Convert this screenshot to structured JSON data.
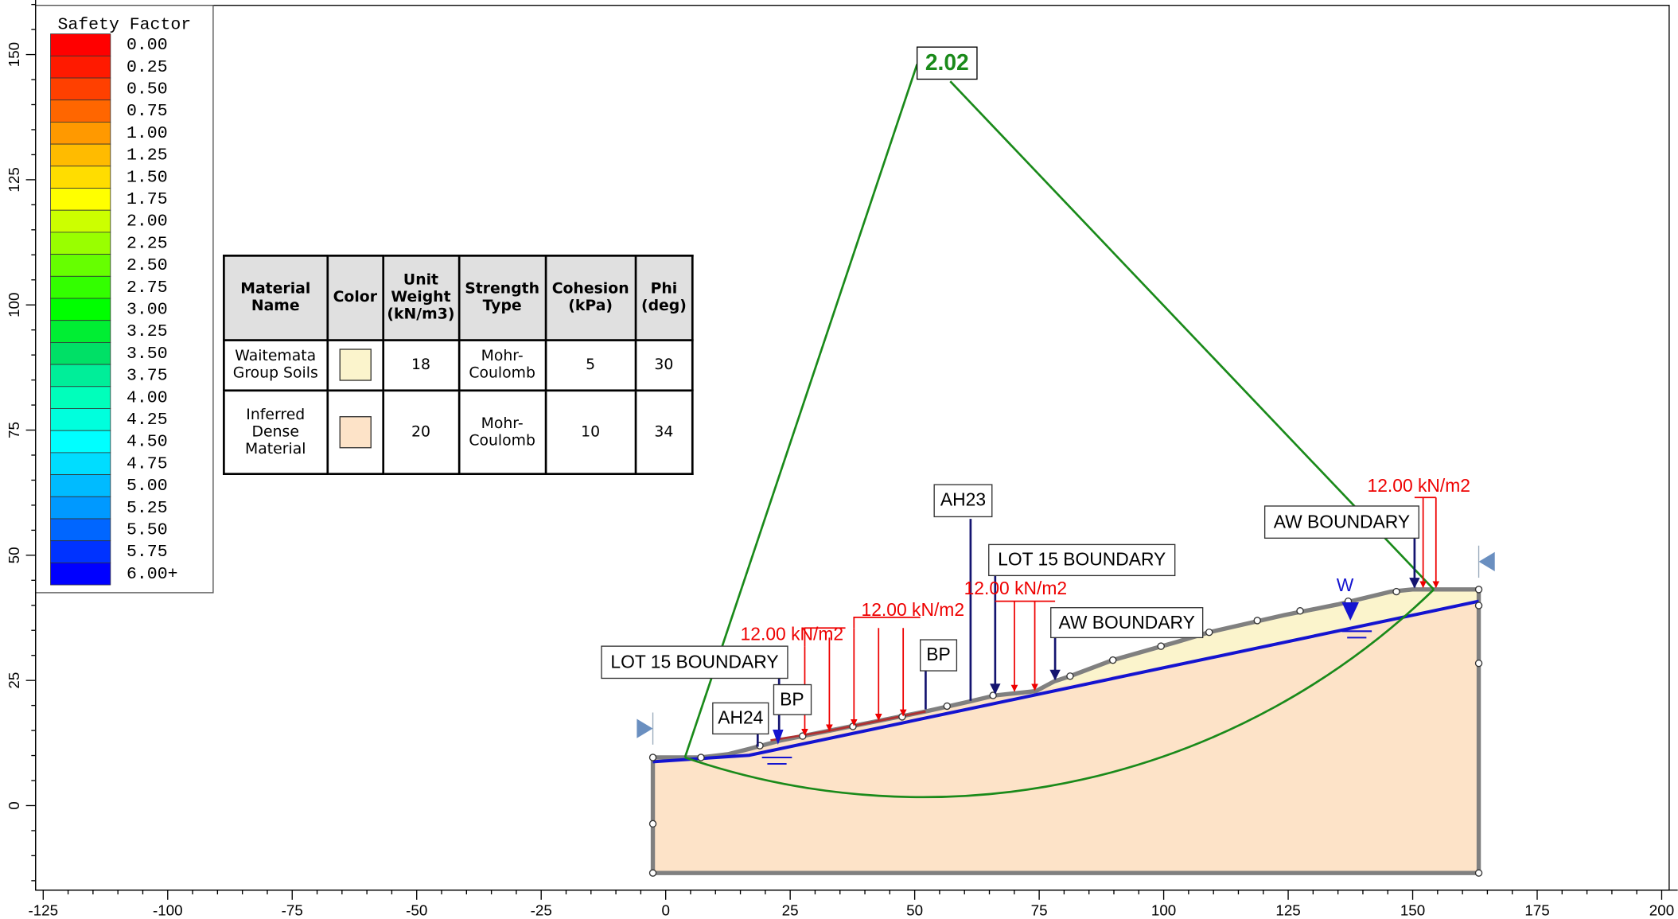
{
  "legend": {
    "title": "Safety Factor",
    "items": [
      {
        "label": "0.00",
        "color": "#ff0000"
      },
      {
        "label": "0.25",
        "color": "#ff1a00"
      },
      {
        "label": "0.50",
        "color": "#ff4000"
      },
      {
        "label": "0.75",
        "color": "#ff6600"
      },
      {
        "label": "1.00",
        "color": "#ff9900"
      },
      {
        "label": "1.25",
        "color": "#ffbb00"
      },
      {
        "label": "1.50",
        "color": "#ffdd00"
      },
      {
        "label": "1.75",
        "color": "#ffff00"
      },
      {
        "label": "2.00",
        "color": "#ccff00"
      },
      {
        "label": "2.25",
        "color": "#99ff00"
      },
      {
        "label": "2.50",
        "color": "#66ff00"
      },
      {
        "label": "2.75",
        "color": "#33ff00"
      },
      {
        "label": "3.00",
        "color": "#00ff00"
      },
      {
        "label": "3.25",
        "color": "#00ee33"
      },
      {
        "label": "3.50",
        "color": "#00e066"
      },
      {
        "label": "3.75",
        "color": "#00ee99"
      },
      {
        "label": "4.00",
        "color": "#00ffbb"
      },
      {
        "label": "4.25",
        "color": "#00ffdd"
      },
      {
        "label": "4.50",
        "color": "#00ffff"
      },
      {
        "label": "4.75",
        "color": "#00ddff"
      },
      {
        "label": "5.00",
        "color": "#00bbff"
      },
      {
        "label": "5.25",
        "color": "#0099ff"
      },
      {
        "label": "5.50",
        "color": "#0066ff"
      },
      {
        "label": "5.75",
        "color": "#0033ff"
      },
      {
        "label": "6.00+",
        "color": "#0000ff"
      }
    ]
  },
  "table": {
    "header": [
      "Material Name",
      "Color",
      "Unit Weight (kN/m3)",
      "Strength Type",
      "Cohesion (kPa)",
      "Phi (deg)"
    ],
    "rows": [
      {
        "name": "Waitemata Group Soils",
        "color": "#fbf4cc",
        "unit_weight": 18,
        "strength_type": "Mohr-Coulomb",
        "cohesion": 5,
        "phi": 30
      },
      {
        "name": "Inferred Dense Material",
        "color": "#fde3c8",
        "unit_weight": 20,
        "strength_type": "Mohr-Coulomb",
        "cohesion": 10,
        "phi": 34
      }
    ]
  },
  "axes": {
    "xticks": [
      -125,
      -100,
      -75,
      -50,
      -25,
      0,
      25,
      50,
      75,
      100,
      125,
      150,
      175,
      200
    ],
    "yticks": [
      0,
      25,
      50,
      75,
      100,
      125,
      150
    ]
  },
  "annotations": {
    "safety_factor": "2.02",
    "labels": [
      "LOT 15 BOUNDARY",
      "AH24",
      "BP",
      "BP",
      "AH23",
      "LOT 15 BOUNDARY",
      "AW BOUNDARY",
      "AW BOUNDARY"
    ],
    "loads": [
      "12.00 kN/m2",
      "12.00 kN/m2",
      "12.00 kN/m2",
      "12.00 kN/m2"
    ],
    "water": "W"
  }
}
